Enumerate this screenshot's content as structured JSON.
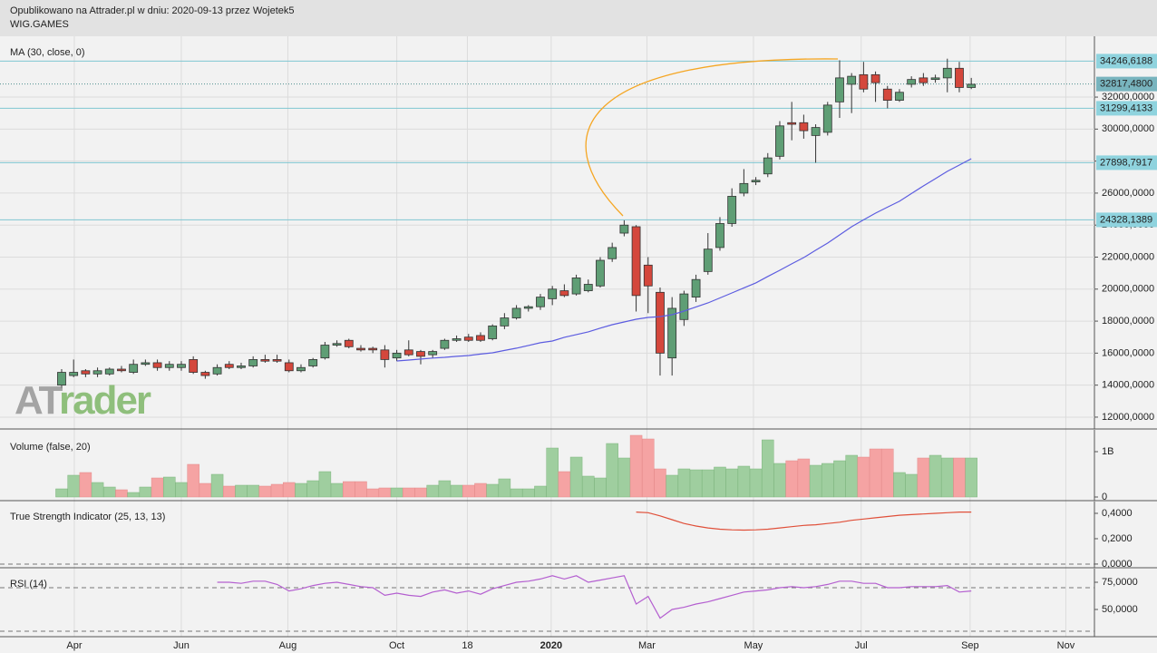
{
  "header": {
    "title": "Opublikowano na Attrader.pl w dniu: 2020-09-13 przez Wojetek5",
    "symbol": "WIG.GAMES",
    "logo": [
      "AT",
      "rader"
    ]
  },
  "chart_data": [
    {
      "type": "candlestick",
      "up_color": "#5f9e75",
      "down_color": "#d4473c",
      "open": [
        14000,
        14600,
        14900,
        14700,
        14700,
        15000,
        14800,
        15300,
        15400,
        15100,
        15100,
        15600,
        14800,
        14700,
        15300,
        15100,
        15200,
        15600,
        15600,
        15400,
        14900,
        15200,
        15700,
        16500,
        16800,
        16300,
        16300,
        16200,
        15700,
        16200,
        16100,
        15900,
        16300,
        16800,
        17000,
        17100,
        16900,
        17700,
        18200,
        18800,
        18900,
        19400,
        19900,
        19700,
        19900,
        20200,
        21900,
        23500,
        23900,
        21500,
        19800,
        15700,
        18100,
        19500,
        21100,
        22600,
        24100,
        26000,
        26700,
        27200,
        28300,
        30400,
        30400,
        29600,
        29800,
        31700,
        32800,
        33400,
        33400,
        32500,
        31800,
        32800,
        33200,
        33100,
        33200,
        33800,
        32600
      ],
      "high": [
        15000,
        15600,
        15000,
        15100,
        15100,
        15200,
        15600,
        15600,
        15600,
        15500,
        15500,
        15800,
        14900,
        15300,
        15500,
        15400,
        15800,
        15900,
        15900,
        15600,
        15300,
        15700,
        16700,
        16800,
        16900,
        16500,
        16400,
        16500,
        16200,
        16800,
        16200,
        16200,
        16900,
        17100,
        17200,
        17300,
        17800,
        18500,
        19000,
        19000,
        19700,
        20200,
        20300,
        20900,
        20600,
        22000,
        22900,
        24300,
        24000,
        22000,
        20100,
        19500,
        19900,
        20900,
        23500,
        24500,
        26300,
        27500,
        27000,
        28500,
        30500,
        31700,
        30900,
        30300,
        31700,
        34300,
        33500,
        34200,
        33600,
        32700,
        32500,
        33300,
        33500,
        33400,
        34400,
        34200,
        33200
      ],
      "low": [
        13800,
        14500,
        14500,
        14500,
        14600,
        14800,
        14700,
        15200,
        14900,
        14900,
        14900,
        14700,
        14400,
        14600,
        15000,
        15000,
        15100,
        15400,
        15400,
        14800,
        14800,
        15100,
        15600,
        16400,
        16300,
        16100,
        16000,
        15100,
        15500,
        15800,
        15300,
        15700,
        16200,
        16700,
        16700,
        16700,
        16800,
        17500,
        18100,
        18600,
        18700,
        19000,
        19500,
        19600,
        19800,
        20100,
        21700,
        23300,
        18600,
        18500,
        14600,
        14600,
        17700,
        19200,
        20900,
        22400,
        23900,
        25800,
        26500,
        27000,
        28100,
        29300,
        29400,
        27900,
        29600,
        30700,
        31000,
        32300,
        31700,
        31300,
        31700,
        32600,
        32700,
        32900,
        32300,
        32300,
        32500
      ],
      "close": [
        14800,
        14800,
        14700,
        14900,
        15000,
        14900,
        15300,
        15400,
        15100,
        15300,
        15300,
        14800,
        14600,
        15100,
        15100,
        15200,
        15600,
        15500,
        15500,
        14900,
        15100,
        15600,
        16500,
        16600,
        16400,
        16200,
        16200,
        15600,
        16000,
        15900,
        15800,
        16100,
        16800,
        16900,
        16800,
        16800,
        17700,
        18200,
        18800,
        18900,
        19500,
        20000,
        19600,
        20700,
        20300,
        21800,
        22600,
        24000,
        19600,
        20200,
        16000,
        18800,
        19700,
        20600,
        22500,
        24100,
        25800,
        26600,
        26800,
        28200,
        30200,
        30300,
        29900,
        30100,
        31500,
        33200,
        33300,
        32500,
        32900,
        31800,
        32300,
        33100,
        32900,
        33200,
        33800,
        32600,
        32800
      ],
      "series": [
        {
          "name": "MA (30, close, 0)",
          "color": "#5c5ce0",
          "values": [
            null,
            null,
            null,
            null,
            null,
            null,
            null,
            null,
            null,
            null,
            null,
            null,
            null,
            null,
            null,
            null,
            null,
            null,
            null,
            null,
            null,
            null,
            null,
            null,
            null,
            null,
            null,
            null,
            15510,
            15570,
            15630,
            15690,
            15740,
            15800,
            15850,
            15940,
            16020,
            16170,
            16310,
            16480,
            16650,
            16760,
            16990,
            17160,
            17330,
            17560,
            17780,
            17950,
            18120,
            18230,
            18280,
            18400,
            18630,
            18890,
            19140,
            19450,
            19760,
            20080,
            20390,
            20790,
            21180,
            21580,
            21970,
            22430,
            22880,
            23390,
            23900,
            24330,
            24750,
            25120,
            25490,
            25970,
            26450,
            26900,
            27360,
            27750,
            28150
          ]
        }
      ],
      "levels": [
        {
          "value": 34246.6188,
          "label": "34246,6188"
        },
        {
          "value": 31299.4133,
          "label": "31299,4133"
        },
        {
          "value": 27898.7917,
          "label": "27898,7917"
        },
        {
          "value": 24328.1389,
          "label": "24328,1389"
        }
      ],
      "last": {
        "value": 32817.48,
        "label": "32817,4800"
      },
      "xlim": [
        -5.15,
        86.29
      ],
      "ylim": [
        11260,
        35800
      ],
      "yticks": [
        {
          "value": 12000,
          "label": "12000,0000"
        },
        {
          "value": 14000,
          "label": "14000,0000"
        },
        {
          "value": 16000,
          "label": "16000,0000"
        },
        {
          "value": 18000,
          "label": "18000,0000"
        },
        {
          "value": 20000,
          "label": "20000,0000"
        },
        {
          "value": 22000,
          "label": "22000,0000"
        },
        {
          "value": 24000,
          "label": "24000,0000"
        },
        {
          "value": 26000,
          "label": "26000,0000"
        },
        {
          "value": 28000,
          "label": "28000,0000"
        },
        {
          "value": 30000,
          "label": "30000,0000"
        },
        {
          "value": 32000,
          "label": "32000,0000"
        }
      ],
      "grid": true
    },
    {
      "type": "bar",
      "title": "Volume (false, 20)",
      "up_color": "#9fce9f",
      "down_color": "#f5a3a3",
      "values": [
        0.18,
        0.48,
        0.54,
        0.32,
        0.22,
        0.16,
        0.1,
        0.22,
        0.42,
        0.44,
        0.32,
        0.72,
        0.3,
        0.5,
        0.24,
        0.26,
        0.26,
        0.24,
        0.28,
        0.32,
        0.3,
        0.36,
        0.56,
        0.3,
        0.34,
        0.34,
        0.18,
        0.2,
        0.2,
        0.2,
        0.2,
        0.26,
        0.36,
        0.26,
        0.26,
        0.3,
        0.28,
        0.4,
        0.18,
        0.18,
        0.24,
        1.08,
        0.56,
        0.88,
        0.46,
        0.42,
        1.18,
        0.86,
        1.36,
        1.28,
        0.62,
        0.48,
        0.62,
        0.6,
        0.6,
        0.66,
        0.62,
        0.68,
        0.62,
        1.26,
        0.74,
        0.8,
        0.84,
        0.7,
        0.74,
        0.8,
        0.92,
        0.88,
        1.06,
        1.06,
        0.54,
        0.5,
        0.86,
        0.92,
        0.86,
        0.86,
        0.86
      ],
      "xlim": [
        -5.15,
        86.29
      ],
      "ylim": [
        -0.08,
        1.48
      ],
      "yticks": [
        {
          "value": 1,
          "label": "1B"
        },
        0
      ]
    },
    {
      "type": "line",
      "series": [
        {
          "name": "True Strength Indicator (25, 13, 13)",
          "color": "#e0503a",
          "values": [
            null,
            null,
            null,
            null,
            null,
            null,
            null,
            null,
            null,
            null,
            null,
            null,
            null,
            null,
            null,
            null,
            null,
            null,
            null,
            null,
            null,
            null,
            null,
            null,
            null,
            null,
            null,
            null,
            null,
            null,
            null,
            null,
            null,
            null,
            null,
            null,
            null,
            null,
            null,
            null,
            null,
            null,
            null,
            null,
            null,
            null,
            null,
            null,
            0.41,
            0.405,
            0.38,
            0.35,
            0.32,
            0.3,
            0.285,
            0.275,
            0.27,
            0.268,
            0.27,
            0.275,
            0.285,
            0.295,
            0.305,
            0.31,
            0.32,
            0.33,
            0.345,
            0.355,
            0.365,
            0.375,
            0.385,
            0.39,
            0.395,
            0.4,
            0.405,
            0.41,
            0.41
          ]
        }
      ],
      "levels": [
        0
      ],
      "xlim": [
        -5.15,
        86.29
      ],
      "ylim": [
        -0.029,
        0.493
      ],
      "yticks": [
        {
          "value": 0.4,
          "label": "0,4000"
        },
        {
          "value": 0.2,
          "label": "0,2000"
        },
        {
          "value": 0,
          "label": "0,0000"
        }
      ]
    },
    {
      "type": "line",
      "series": [
        {
          "name": "RSI (14)",
          "color": "#b45fd0",
          "values": [
            null,
            null,
            null,
            null,
            null,
            null,
            null,
            null,
            null,
            null,
            null,
            null,
            null,
            75,
            75,
            74,
            76,
            76,
            73,
            67,
            69,
            72,
            74,
            75,
            73,
            71,
            70,
            63,
            65,
            63,
            62,
            66,
            68,
            65,
            67,
            64,
            69,
            72,
            75,
            76,
            78,
            81,
            78,
            81,
            75,
            77,
            79,
            81,
            55,
            62,
            42,
            50,
            52,
            55,
            57,
            60,
            63,
            66,
            67,
            68,
            70,
            71,
            70,
            71,
            73,
            76,
            76,
            74,
            74,
            70,
            70,
            71,
            71,
            71,
            72,
            66,
            67
          ]
        }
      ],
      "levels": [
        70,
        30
      ],
      "xlim": [
        -5.15,
        86.29
      ],
      "ylim": [
        25,
        87.5
      ],
      "yticks": [
        {
          "value": 75,
          "label": "75,0000"
        },
        {
          "value": 50,
          "label": "50,0000"
        }
      ],
      "xticks": [
        {
          "value": 1.06,
          "label": "Apr"
        },
        {
          "value": 10,
          "label": "Jun"
        },
        {
          "value": 18.9,
          "label": "Aug"
        },
        {
          "value": 28,
          "label": "Oct"
        },
        {
          "value": 33.9,
          "label": "18"
        },
        {
          "value": 40.9,
          "label": "2020"
        },
        {
          "value": 48.9,
          "label": "Mar"
        },
        {
          "value": 57.8,
          "label": "May"
        },
        {
          "value": 66.8,
          "label": "Jul"
        },
        {
          "value": 75.9,
          "label": "Sep"
        },
        {
          "value": 83.9,
          "label": "Nov"
        }
      ]
    }
  ]
}
